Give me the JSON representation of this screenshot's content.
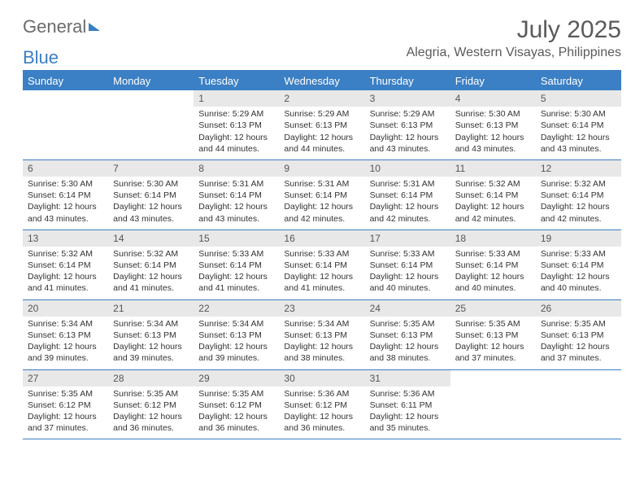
{
  "logo": {
    "text1": "General",
    "text2": "Blue"
  },
  "title": "July 2025",
  "location": "Alegria, Western Visayas, Philippines",
  "colors": {
    "accent": "#3b7fc4",
    "header_bg": "#e8e8e8",
    "text": "#333333",
    "title_text": "#5a5a5a",
    "background": "#ffffff"
  },
  "daynames": [
    "Sunday",
    "Monday",
    "Tuesday",
    "Wednesday",
    "Thursday",
    "Friday",
    "Saturday"
  ],
  "weeks": [
    [
      {
        "empty": true
      },
      {
        "empty": true
      },
      {
        "day": "1",
        "sunrise": "5:29 AM",
        "sunset": "6:13 PM",
        "daylight": "12 hours and 44 minutes."
      },
      {
        "day": "2",
        "sunrise": "5:29 AM",
        "sunset": "6:13 PM",
        "daylight": "12 hours and 44 minutes."
      },
      {
        "day": "3",
        "sunrise": "5:29 AM",
        "sunset": "6:13 PM",
        "daylight": "12 hours and 43 minutes."
      },
      {
        "day": "4",
        "sunrise": "5:30 AM",
        "sunset": "6:13 PM",
        "daylight": "12 hours and 43 minutes."
      },
      {
        "day": "5",
        "sunrise": "5:30 AM",
        "sunset": "6:14 PM",
        "daylight": "12 hours and 43 minutes."
      }
    ],
    [
      {
        "day": "6",
        "sunrise": "5:30 AM",
        "sunset": "6:14 PM",
        "daylight": "12 hours and 43 minutes."
      },
      {
        "day": "7",
        "sunrise": "5:30 AM",
        "sunset": "6:14 PM",
        "daylight": "12 hours and 43 minutes."
      },
      {
        "day": "8",
        "sunrise": "5:31 AM",
        "sunset": "6:14 PM",
        "daylight": "12 hours and 43 minutes."
      },
      {
        "day": "9",
        "sunrise": "5:31 AM",
        "sunset": "6:14 PM",
        "daylight": "12 hours and 42 minutes."
      },
      {
        "day": "10",
        "sunrise": "5:31 AM",
        "sunset": "6:14 PM",
        "daylight": "12 hours and 42 minutes."
      },
      {
        "day": "11",
        "sunrise": "5:32 AM",
        "sunset": "6:14 PM",
        "daylight": "12 hours and 42 minutes."
      },
      {
        "day": "12",
        "sunrise": "5:32 AM",
        "sunset": "6:14 PM",
        "daylight": "12 hours and 42 minutes."
      }
    ],
    [
      {
        "day": "13",
        "sunrise": "5:32 AM",
        "sunset": "6:14 PM",
        "daylight": "12 hours and 41 minutes."
      },
      {
        "day": "14",
        "sunrise": "5:32 AM",
        "sunset": "6:14 PM",
        "daylight": "12 hours and 41 minutes."
      },
      {
        "day": "15",
        "sunrise": "5:33 AM",
        "sunset": "6:14 PM",
        "daylight": "12 hours and 41 minutes."
      },
      {
        "day": "16",
        "sunrise": "5:33 AM",
        "sunset": "6:14 PM",
        "daylight": "12 hours and 41 minutes."
      },
      {
        "day": "17",
        "sunrise": "5:33 AM",
        "sunset": "6:14 PM",
        "daylight": "12 hours and 40 minutes."
      },
      {
        "day": "18",
        "sunrise": "5:33 AM",
        "sunset": "6:14 PM",
        "daylight": "12 hours and 40 minutes."
      },
      {
        "day": "19",
        "sunrise": "5:33 AM",
        "sunset": "6:14 PM",
        "daylight": "12 hours and 40 minutes."
      }
    ],
    [
      {
        "day": "20",
        "sunrise": "5:34 AM",
        "sunset": "6:13 PM",
        "daylight": "12 hours and 39 minutes."
      },
      {
        "day": "21",
        "sunrise": "5:34 AM",
        "sunset": "6:13 PM",
        "daylight": "12 hours and 39 minutes."
      },
      {
        "day": "22",
        "sunrise": "5:34 AM",
        "sunset": "6:13 PM",
        "daylight": "12 hours and 39 minutes."
      },
      {
        "day": "23",
        "sunrise": "5:34 AM",
        "sunset": "6:13 PM",
        "daylight": "12 hours and 38 minutes."
      },
      {
        "day": "24",
        "sunrise": "5:35 AM",
        "sunset": "6:13 PM",
        "daylight": "12 hours and 38 minutes."
      },
      {
        "day": "25",
        "sunrise": "5:35 AM",
        "sunset": "6:13 PM",
        "daylight": "12 hours and 37 minutes."
      },
      {
        "day": "26",
        "sunrise": "5:35 AM",
        "sunset": "6:13 PM",
        "daylight": "12 hours and 37 minutes."
      }
    ],
    [
      {
        "day": "27",
        "sunrise": "5:35 AM",
        "sunset": "6:12 PM",
        "daylight": "12 hours and 37 minutes."
      },
      {
        "day": "28",
        "sunrise": "5:35 AM",
        "sunset": "6:12 PM",
        "daylight": "12 hours and 36 minutes."
      },
      {
        "day": "29",
        "sunrise": "5:35 AM",
        "sunset": "6:12 PM",
        "daylight": "12 hours and 36 minutes."
      },
      {
        "day": "30",
        "sunrise": "5:36 AM",
        "sunset": "6:12 PM",
        "daylight": "12 hours and 36 minutes."
      },
      {
        "day": "31",
        "sunrise": "5:36 AM",
        "sunset": "6:11 PM",
        "daylight": "12 hours and 35 minutes."
      },
      {
        "empty": true
      },
      {
        "empty": true
      }
    ]
  ],
  "labels": {
    "sunrise": "Sunrise: ",
    "sunset": "Sunset: ",
    "daylight": "Daylight: "
  },
  "typography": {
    "title_fontsize": 30,
    "location_fontsize": 16,
    "dayname_fontsize": 13,
    "cell_fontsize": 10.5
  }
}
